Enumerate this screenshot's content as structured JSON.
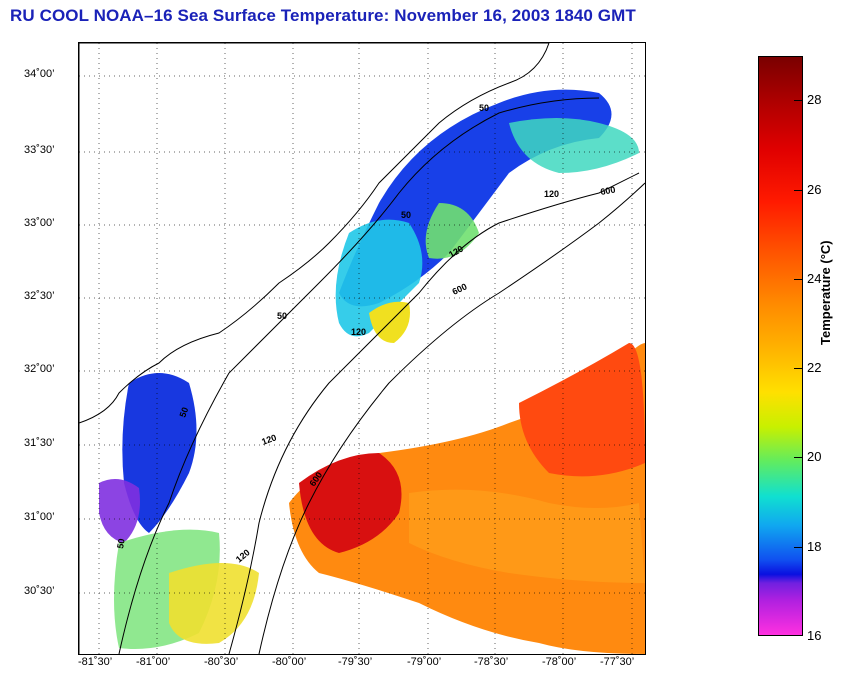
{
  "title": "RU COOL  NOAA–16  Sea Surface Temperature:  November 16, 2003 1840 GMT",
  "lat_labels": [
    "34˚00’",
    "33˚30’",
    "33˚00’",
    "32˚30’",
    "32˚00’",
    "31˚30’",
    "31˚00’",
    "30˚30’"
  ],
  "lon_labels": [
    "-81˚30’",
    "-81˚00’",
    "-80˚30’",
    "-80˚00’",
    "-79˚30’",
    "-79˚00’",
    "-78˚30’",
    "-78˚00’",
    "-77˚30’"
  ],
  "contour_labels": [
    "50",
    "50",
    "50",
    "50",
    "50",
    "120",
    "120",
    "120",
    "120",
    "120",
    "600",
    "600",
    "600"
  ],
  "colorbar": {
    "label": "Temperature (°C)",
    "ticks": [
      "28",
      "26",
      "24",
      "22",
      "20",
      "18",
      "16"
    ],
    "min": 16,
    "max": 29
  },
  "colors": {
    "title": "#1a22b8",
    "warm": "#ff5a00",
    "cold": "#1a30e0"
  }
}
